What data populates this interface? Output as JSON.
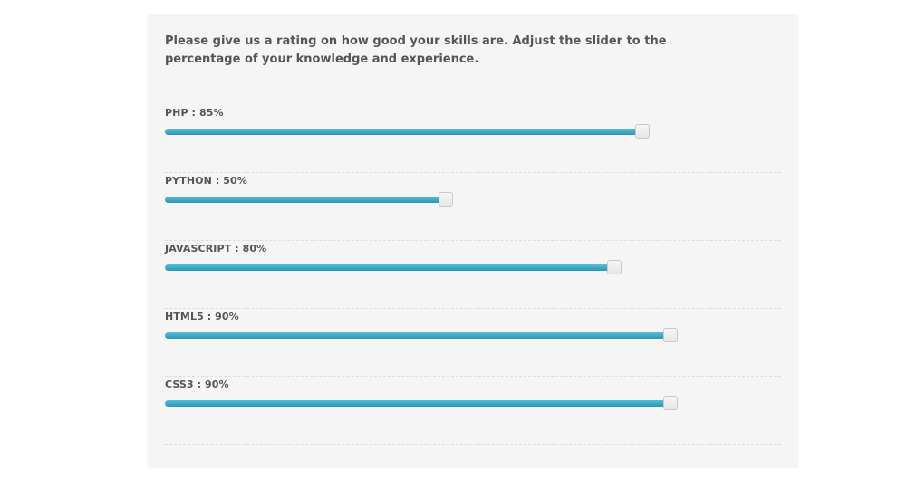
{
  "intro": "Please give us a rating on how good your skills are. Adjust the slider to the percentage of your knowledge and experience.",
  "skills": [
    {
      "label": "PHP : 85%",
      "value": 85
    },
    {
      "label": "PYTHON : 50%",
      "value": 50
    },
    {
      "label": "JAVASCRIPT : 80%",
      "value": 80
    },
    {
      "label": "HTML5 : 90%",
      "value": 90
    },
    {
      "label": "CSS3 : 90%",
      "value": 90
    }
  ],
  "colors": {
    "fill": "#3aa6c6",
    "panel": "#f5f5f5",
    "text": "#555555"
  }
}
